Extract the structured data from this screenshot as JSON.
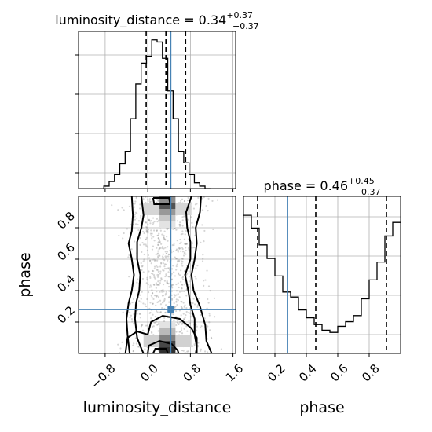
{
  "chart_data": [
    {
      "type": "histogram",
      "panel": "luminosity_distance",
      "title": {
        "main": "luminosity_distance = 0.34",
        "sup": "+0.37",
        "sub": "−0.37"
      },
      "xlabel": "luminosity_distance",
      "xlim": [
        -1.3,
        1.65
      ],
      "xticks": [
        {
          "value": -0.8,
          "label": "−0.8"
        },
        {
          "value": 0.0,
          "label": "0.0"
        },
        {
          "value": 0.8,
          "label": "0.8"
        },
        {
          "value": 1.6,
          "label": "1.6"
        }
      ],
      "bins": [
        -0.825,
        -0.725,
        -0.625,
        -0.525,
        -0.425,
        -0.325,
        -0.225,
        -0.125,
        -0.025,
        0.075,
        0.175,
        0.275,
        0.375,
        0.475,
        0.575,
        0.675,
        0.775,
        0.875,
        0.975,
        1.075,
        1.175
      ],
      "counts": [
        0.8,
        2.3,
        4.6,
        8.2,
        12.3,
        23.1,
        34.6,
        41.5,
        43.8,
        49.2,
        48.5,
        43.1,
        32.3,
        23.1,
        12.3,
        8.5,
        4.6,
        1.9,
        0.8,
        0.0
      ],
      "ylim": [
        0,
        52
      ],
      "quantiles": [
        -0.03,
        0.34,
        0.71
      ],
      "truth": 0.43
    },
    {
      "type": "contour",
      "panel": "luminosity_distance-phase",
      "xlabel": "luminosity_distance",
      "ylabel": "phase",
      "xlim": [
        -1.3,
        1.65
      ],
      "ylim": [
        0.0,
        1.0
      ],
      "xticks": [
        {
          "value": -0.8,
          "label": "−0.8"
        },
        {
          "value": 0.0,
          "label": "0.0"
        },
        {
          "value": 0.8,
          "label": "0.8"
        },
        {
          "value": 1.6,
          "label": "1.6"
        }
      ],
      "yticks": [
        {
          "value": 0.2,
          "label": "0.2"
        },
        {
          "value": 0.4,
          "label": "0.4"
        },
        {
          "value": 0.6,
          "label": "0.6"
        },
        {
          "value": 0.8,
          "label": "0.8"
        }
      ],
      "density_cells": [
        {
          "x": 0.22,
          "y": 0.96,
          "w": 0.3,
          "h": 0.04,
          "shade": 0.5
        },
        {
          "x": 0.22,
          "y": 0.92,
          "w": 0.3,
          "h": 0.04,
          "shade": 0.75
        },
        {
          "x": 0.22,
          "y": 0.88,
          "w": 0.3,
          "h": 0.04,
          "shade": 0.45
        },
        {
          "x": 0.22,
          "y": 0.84,
          "w": 0.3,
          "h": 0.04,
          "shade": 0.25
        },
        {
          "x": 0.22,
          "y": 0.8,
          "w": 0.3,
          "h": 0.04,
          "shade": 0.12
        },
        {
          "x": 0.22,
          "y": 0.16,
          "w": 0.3,
          "h": 0.04,
          "shade": 0.12
        },
        {
          "x": 0.22,
          "y": 0.12,
          "w": 0.3,
          "h": 0.04,
          "shade": 0.3
        },
        {
          "x": 0.22,
          "y": 0.08,
          "w": 0.3,
          "h": 0.04,
          "shade": 0.55
        },
        {
          "x": 0.22,
          "y": 0.04,
          "w": 0.3,
          "h": 0.04,
          "shade": 0.8
        },
        {
          "x": 0.22,
          "y": 0.0,
          "w": 0.3,
          "h": 0.04,
          "shade": 0.9
        },
        {
          "x": -0.08,
          "y": 0.04,
          "w": 0.3,
          "h": 0.08,
          "shade": 0.2
        },
        {
          "x": 0.52,
          "y": 0.04,
          "w": 0.3,
          "h": 0.08,
          "shade": 0.2
        },
        {
          "x": -0.08,
          "y": 0.88,
          "w": 0.3,
          "h": 0.08,
          "shade": 0.18
        },
        {
          "x": 0.52,
          "y": 0.88,
          "w": 0.3,
          "h": 0.08,
          "shade": 0.18
        }
      ],
      "contours": [
        [
          [
            0.1,
            0.99
          ],
          [
            0.4,
            0.99
          ],
          [
            0.42,
            0.95
          ],
          [
            0.12,
            0.95
          ],
          [
            0.1,
            0.99
          ]
        ],
        [
          [
            -0.12,
            1.0
          ],
          [
            -0.08,
            0.88
          ],
          [
            -0.12,
            0.8
          ],
          [
            -0.2,
            0.71
          ],
          [
            -0.2,
            0.6
          ],
          [
            -0.14,
            0.5
          ],
          [
            -0.16,
            0.4
          ],
          [
            -0.22,
            0.32
          ],
          [
            -0.24,
            0.22
          ],
          [
            -0.2,
            0.1
          ],
          [
            -0.12,
            0.03
          ],
          [
            -0.08,
            0.0
          ],
          [
            0.9,
            0.0
          ],
          [
            0.92,
            0.04
          ],
          [
            0.88,
            0.12
          ],
          [
            0.88,
            0.22
          ],
          [
            0.8,
            0.31
          ],
          [
            0.76,
            0.4
          ],
          [
            0.7,
            0.5
          ],
          [
            0.8,
            0.6
          ],
          [
            0.8,
            0.71
          ],
          [
            0.74,
            0.8
          ],
          [
            0.72,
            0.9
          ],
          [
            0.82,
            1.0
          ]
        ],
        [
          [
            -0.3,
            1.0
          ],
          [
            -0.28,
            0.88
          ],
          [
            -0.3,
            0.78
          ],
          [
            -0.36,
            0.7
          ],
          [
            -0.3,
            0.6
          ],
          [
            -0.26,
            0.5
          ],
          [
            -0.3,
            0.4
          ],
          [
            -0.36,
            0.32
          ],
          [
            -0.4,
            0.22
          ],
          [
            -0.38,
            0.12
          ],
          [
            -0.34,
            0.0
          ],
          [
            1.2,
            0.0
          ],
          [
            1.1,
            0.08
          ],
          [
            1.08,
            0.18
          ],
          [
            0.98,
            0.3
          ],
          [
            0.86,
            0.4
          ],
          [
            0.82,
            0.5
          ],
          [
            0.88,
            0.6
          ],
          [
            0.92,
            0.7
          ],
          [
            0.9,
            0.8
          ],
          [
            0.98,
            0.9
          ],
          [
            1.0,
            1.0
          ]
        ],
        [
          [
            -0.42,
            0.0
          ],
          [
            -0.38,
            0.1
          ],
          [
            -0.2,
            0.14
          ],
          [
            0.0,
            0.12
          ],
          [
            0.06,
            0.2
          ],
          [
            0.28,
            0.24
          ],
          [
            0.6,
            0.22
          ],
          [
            0.82,
            0.16
          ],
          [
            0.92,
            0.1
          ],
          [
            0.92,
            0.0
          ]
        ],
        [
          [
            0.0,
            0.0
          ],
          [
            0.02,
            0.05
          ],
          [
            0.22,
            0.08
          ],
          [
            0.45,
            0.06
          ],
          [
            0.56,
            0.02
          ],
          [
            0.58,
            0.0
          ]
        ],
        [
          [
            0.1,
            0.0
          ],
          [
            0.14,
            0.03
          ],
          [
            0.34,
            0.03
          ],
          [
            0.38,
            0.0
          ]
        ]
      ],
      "truth": {
        "x": 0.43,
        "y": 0.28
      }
    },
    {
      "type": "histogram",
      "panel": "phase",
      "title": {
        "main": "phase = 0.46",
        "sup": "+0.45",
        "sub": "−0.37"
      },
      "xlabel": "phase",
      "xlim": [
        0.0,
        1.0
      ],
      "xticks": [
        {
          "value": 0.2,
          "label": "0.2"
        },
        {
          "value": 0.4,
          "label": "0.4"
        },
        {
          "value": 0.6,
          "label": "0.6"
        },
        {
          "value": 0.8,
          "label": "0.8"
        }
      ],
      "bins": [
        0.0,
        0.05,
        0.1,
        0.15,
        0.2,
        0.25,
        0.3,
        0.35,
        0.4,
        0.45,
        0.5,
        0.55,
        0.6,
        0.65,
        0.7,
        0.75,
        0.8,
        0.85,
        0.9,
        0.95,
        1.0
      ],
      "counts": [
        38.7,
        35.1,
        30.4,
        26.6,
        21.7,
        17.2,
        15.8,
        12.2,
        10.0,
        8.1,
        6.5,
        5.9,
        7.6,
        8.9,
        10.6,
        15.3,
        20.6,
        25.6,
        32.9,
        36.7
      ],
      "ylim": [
        0,
        44
      ],
      "quantiles": [
        0.09,
        0.46,
        0.91
      ],
      "truth": 0.28
    }
  ]
}
